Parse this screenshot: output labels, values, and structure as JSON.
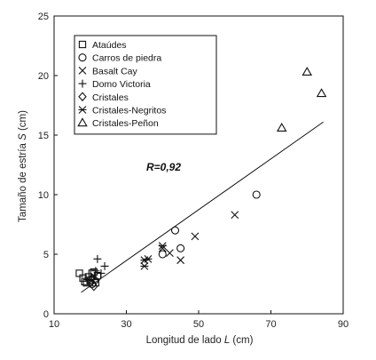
{
  "chart_data": {
    "type": "scatter",
    "title": "",
    "xlabel": {
      "prefix": "Longitud de lado ",
      "var": "L",
      "suffix": " (cm)"
    },
    "ylabel": {
      "prefix": "Tamaño de estría ",
      "var": "S",
      "suffix": " (cm)"
    },
    "xlim": [
      10,
      90
    ],
    "ylim": [
      0,
      25
    ],
    "xticks": [
      10,
      30,
      50,
      70,
      90
    ],
    "yticks": [
      0,
      5,
      10,
      15,
      20,
      25
    ],
    "grid": false,
    "legend_position": "top-left",
    "annotation": "R=0,92",
    "regression_line": {
      "x1": 17.5,
      "y1": 1.8,
      "x2": 84.5,
      "y2": 16.1
    },
    "series": [
      {
        "name": "Ataúdes",
        "marker": "square",
        "points": [
          [
            17,
            3.4
          ],
          [
            18,
            3.0
          ],
          [
            18.5,
            2.7
          ],
          [
            19,
            2.6
          ],
          [
            19.5,
            3.1
          ],
          [
            20,
            2.8
          ],
          [
            20.5,
            3.4
          ],
          [
            21,
            3.5
          ],
          [
            21.5,
            2.6
          ],
          [
            22,
            3.2
          ]
        ]
      },
      {
        "name": "Carros de piedra",
        "marker": "circle",
        "points": [
          [
            20.5,
            2.5
          ],
          [
            40,
            5.0
          ],
          [
            43.5,
            7.0
          ],
          [
            45,
            5.5
          ],
          [
            66,
            10.0
          ]
        ]
      },
      {
        "name": "Basalt Cay",
        "marker": "x",
        "points": [
          [
            40,
            5.5
          ],
          [
            42,
            5.1
          ],
          [
            45,
            4.5
          ],
          [
            49,
            6.5
          ],
          [
            60,
            8.3
          ]
        ]
      },
      {
        "name": "Domo Victoria",
        "marker": "plus",
        "points": [
          [
            20,
            2.8
          ],
          [
            21.5,
            3.6
          ],
          [
            22,
            4.6
          ],
          [
            23,
            3.4
          ],
          [
            24,
            4.0
          ]
        ]
      },
      {
        "name": "Cristales",
        "marker": "diamond",
        "points": [
          [
            20,
            2.6
          ],
          [
            20.5,
            3.0
          ],
          [
            21,
            2.3
          ],
          [
            21.5,
            2.8
          ]
        ]
      },
      {
        "name": "Cristales-Negritos",
        "marker": "asterisk",
        "points": [
          [
            35,
            4.5
          ],
          [
            35,
            4.0
          ],
          [
            40,
            5.7
          ],
          [
            36,
            4.6
          ]
        ]
      },
      {
        "name": "Cristales-Peñon",
        "marker": "triangle",
        "points": [
          [
            73,
            15.6
          ],
          [
            80,
            20.3
          ],
          [
            84,
            18.5
          ]
        ]
      }
    ]
  }
}
